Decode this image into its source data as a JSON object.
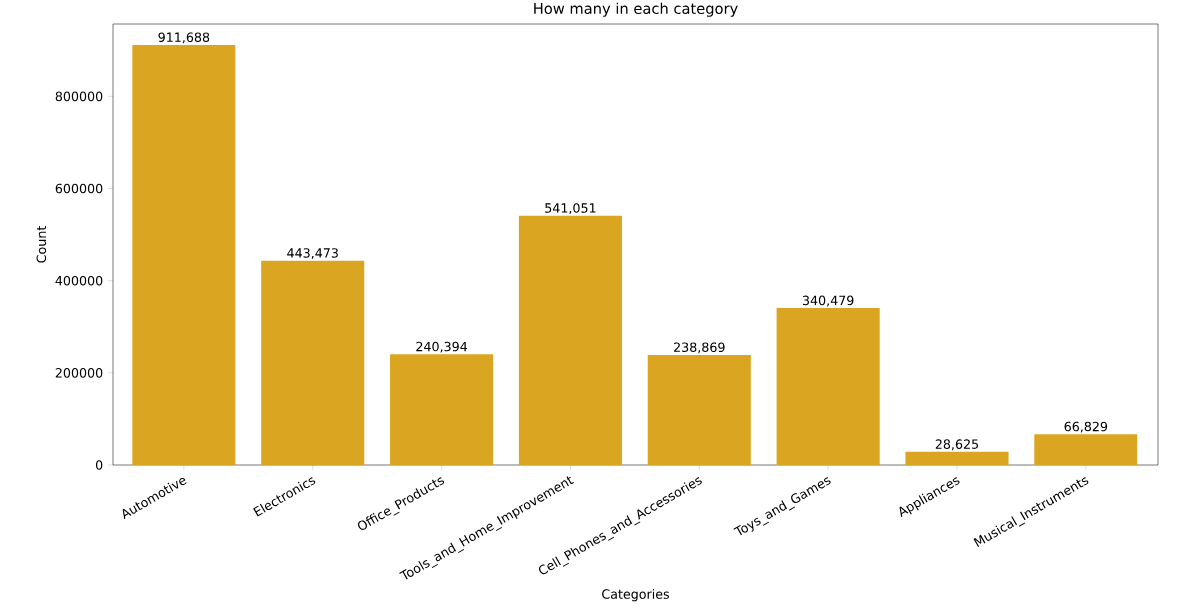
{
  "chart_data": {
    "type": "bar",
    "title": "How many in each category",
    "xlabel": "Categories",
    "ylabel": "Count",
    "categories": [
      "Automotive",
      "Electronics",
      "Office_Products",
      "Tools_and_Home_Improvement",
      "Cell_Phones_and_Accessories",
      "Toys_and_Games",
      "Appliances",
      "Musical_Instruments"
    ],
    "values": [
      911688,
      443473,
      240394,
      541051,
      238869,
      340479,
      28625,
      66829
    ],
    "value_labels": [
      "911,688",
      "443,473",
      "240,394",
      "541,051",
      "238,869",
      "340,479",
      "28,625",
      "66,829"
    ],
    "color": "#daa520",
    "ylim": [
      0,
      957000
    ],
    "yticks": [
      0,
      200000,
      400000,
      600000,
      800000
    ]
  }
}
